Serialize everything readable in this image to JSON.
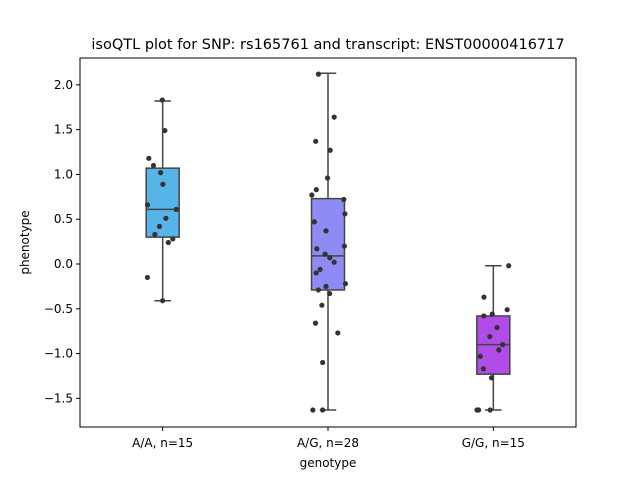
{
  "chart_data": {
    "type": "box",
    "title": "isoQTL plot for SNP: rs165761 and transcript: ENST00000416717",
    "xlabel": "genotype",
    "ylabel": "phenotype",
    "ylim": [
      -1.82,
      2.3
    ],
    "yticks": [
      -1.5,
      -1.0,
      -0.5,
      0.0,
      0.5,
      1.0,
      1.5,
      2.0
    ],
    "ytick_labels": [
      "−1.5",
      "−1.0",
      "−0.5",
      "0.0",
      "0.5",
      "1.0",
      "1.5",
      "2.0"
    ],
    "categories": [
      "A/A, n=15",
      "A/G, n=28",
      "G/G, n=15"
    ],
    "grid": false,
    "boxes": [
      {
        "category": "A/A, n=15",
        "color": "#56b4e9",
        "whisker_low": -0.41,
        "q1": 0.3,
        "median": 0.61,
        "q3": 1.07,
        "whisker_high": 1.82
      },
      {
        "category": "A/G, n=28",
        "color": "#8f8bf5",
        "whisker_low": -1.63,
        "q1": -0.29,
        "median": 0.09,
        "q3": 0.73,
        "whisker_high": 2.13
      },
      {
        "category": "G/G, n=15",
        "color": "#b04de8",
        "whisker_low": -1.63,
        "q1": -1.23,
        "median": -0.9,
        "q3": -0.58,
        "whisker_high": -0.02
      }
    ],
    "points": [
      [
        1.83,
        1.49,
        1.18,
        1.1,
        1.02,
        0.89,
        0.66,
        0.61,
        0.51,
        0.42,
        0.33,
        0.28,
        0.24,
        -0.15,
        -0.41
      ],
      [
        2.12,
        1.64,
        1.37,
        1.27,
        0.96,
        0.83,
        0.77,
        0.72,
        0.56,
        0.47,
        0.37,
        0.2,
        0.17,
        0.11,
        0.07,
        0.02,
        -0.06,
        -0.1,
        -0.22,
        -0.25,
        -0.29,
        -0.33,
        -0.46,
        -0.66,
        -0.77,
        -1.1,
        -1.63,
        -1.63
      ],
      [
        -0.02,
        -0.37,
        -0.51,
        -0.56,
        -0.58,
        -0.71,
        -0.81,
        -0.9,
        -0.96,
        -1.03,
        -1.17,
        -1.27,
        -1.63,
        -1.63,
        -1.63
      ]
    ],
    "point_color": "#333333"
  }
}
